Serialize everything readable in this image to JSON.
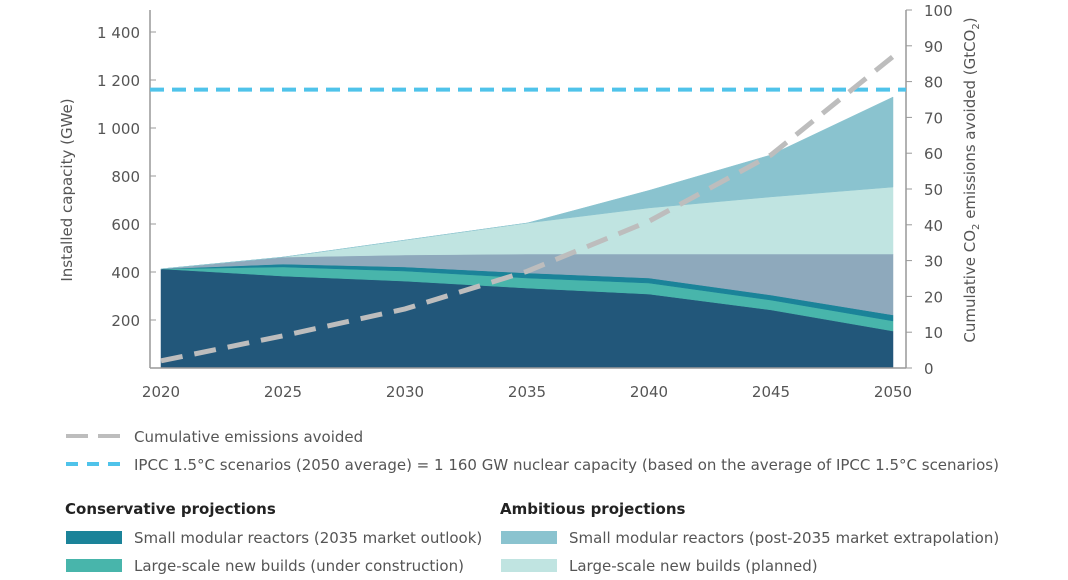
{
  "chart_data": {
    "type": "area",
    "stacked": true,
    "x": [
      2020,
      2025,
      2030,
      2035,
      2040,
      2045,
      2050
    ],
    "ylabel": "Installed capacity (GWe)",
    "ylabel_right_parts": [
      "Cumulative CO",
      "2",
      " emissions avoided (GtCO",
      "2",
      ")"
    ],
    "ylim": [
      0,
      1500
    ],
    "y_ticks": [
      200,
      400,
      600,
      800,
      1000,
      1200,
      1400
    ],
    "y_tick_labels": [
      "200",
      "400",
      "600",
      "800",
      "1 000",
      "1 200",
      "1 400"
    ],
    "y2lim": [
      0,
      100
    ],
    "y2_ticks": [
      0,
      10,
      20,
      30,
      40,
      50,
      60,
      70,
      80,
      90,
      100
    ],
    "x_tick_labels": [
      "2020",
      "2025",
      "2030",
      "2035",
      "2040",
      "2045",
      "2050"
    ],
    "series_stack_tops": [
      {
        "name": "",
        "color": "#22577a",
        "values": [
          413,
          383,
          362,
          333,
          308,
          242,
          154
        ]
      },
      {
        "name": "Large-scale new builds (under construction)",
        "color": "#48b5ab",
        "values": [
          413,
          421,
          404,
          375,
          354,
          283,
          196
        ]
      },
      {
        "name": "Small modular reactors (2035 market outlook)",
        "color": "#1b8399",
        "values": [
          413,
          433,
          421,
          396,
          375,
          304,
          221
        ]
      },
      {
        "name": "",
        "color": "#8ea9bc",
        "values": [
          413,
          462,
          471,
          475,
          475,
          475,
          475
        ]
      },
      {
        "name": "Large-scale new builds (planned)",
        "color": "#c0e4e1",
        "values": [
          413,
          462,
          533,
          604,
          667,
          713,
          754
        ]
      },
      {
        "name": "Small modular reactors (post-2035 market extrapolation)",
        "color": "#8ac3cf",
        "values": [
          413,
          462,
          533,
          604,
          740,
          888,
          1129
        ]
      }
    ],
    "emissions_line": {
      "name": "Cumulative emissions avoided",
      "color": "#bdbdbd",
      "axis": "right",
      "values": [
        2,
        9,
        16.5,
        27,
        41,
        59.5,
        87
      ]
    },
    "reference_line": {
      "name": "IPCC 1.5°C scenarios (2050 average) = 1 160 GW nuclear capacity (based on the average of IPCC 1.5°C scenarios)",
      "color": "#4fc3ea",
      "value": 1160
    }
  },
  "legend": {
    "conservative_title": "Conservative projections",
    "ambitious_title": "Ambitious projections",
    "conservative_items": [
      {
        "label": "Small modular reactors (2035 market outlook)",
        "color": "#1b8399"
      },
      {
        "label": "Large-scale new builds (under construction)",
        "color": "#48b5ab"
      }
    ],
    "ambitious_items": [
      {
        "label": "Small modular reactors (post-2035 market extrapolation)",
        "color": "#8ac3cf"
      },
      {
        "label": "Large-scale new builds (planned)",
        "color": "#c0e4e1"
      }
    ]
  }
}
